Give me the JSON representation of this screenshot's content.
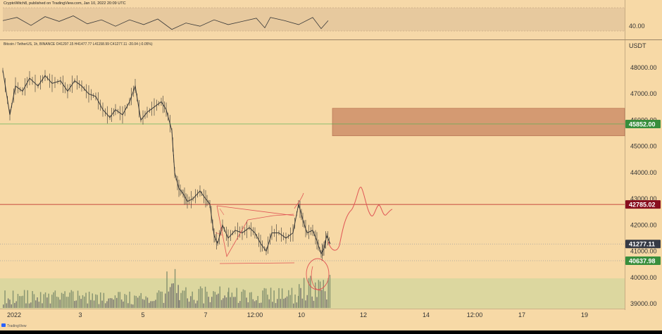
{
  "header": {
    "publisher_line": "CryptoWitch8, published on TradingView.com, Jan 10, 2022 20:09 UTC"
  },
  "chart_info": {
    "ohlc_line": "Bitcoin / TetherUS, 1h, BINANCE  O41297.15  H41477.77  L41158.99  C41277.11  -20.04 (-0.05%)"
  },
  "footer": {
    "brand": "TradingView"
  },
  "chart_data": {
    "type": "line",
    "ylim": [
      38800,
      49300
    ],
    "y_ticks": [
      "48000.00",
      "47000.00",
      "46000.00",
      "45000.00",
      "44000.00",
      "43000.00",
      "42000.00",
      "41000.00",
      "40000.00",
      "39000.00"
    ],
    "x_ticks": [
      "2022",
      "3",
      "5",
      "7",
      "12:00",
      "10",
      "12",
      "14",
      "12:00",
      "17",
      "19"
    ],
    "price_labels": [
      {
        "text": "45852.00",
        "color": "#388e3c"
      },
      {
        "text": "42785.02",
        "color": "#880e1e"
      },
      {
        "text": "41277.11",
        "color": "#363a45"
      },
      {
        "text": "40637.98",
        "color": "#388e3c"
      }
    ],
    "currency_label": "USDT",
    "rsi_label": "40.00",
    "zone": {
      "from": 45400,
      "to": 46450,
      "color": "#d49a72"
    },
    "lines": [
      {
        "value": 45852,
        "color": "#4caf50"
      },
      {
        "value": 42785.02,
        "color": "#b71c1c"
      },
      {
        "value": 41277.11,
        "color": "#9e9e9e"
      },
      {
        "value": 40637.98,
        "color": "#9e9e9e"
      }
    ],
    "price_path": [
      [
        0,
        47900
      ],
      [
        10,
        46200
      ],
      [
        18,
        47300
      ],
      [
        28,
        47100
      ],
      [
        38,
        47600
      ],
      [
        50,
        47300
      ],
      [
        60,
        47700
      ],
      [
        70,
        47400
      ],
      [
        82,
        47500
      ],
      [
        92,
        47100
      ],
      [
        102,
        47500
      ],
      [
        112,
        47300
      ],
      [
        122,
        47000
      ],
      [
        132,
        46900
      ],
      [
        142,
        46400
      ],
      [
        152,
        46100
      ],
      [
        160,
        46400
      ],
      [
        170,
        46200
      ],
      [
        180,
        46700
      ],
      [
        188,
        47300
      ],
      [
        196,
        46000
      ],
      [
        205,
        46300
      ],
      [
        215,
        46500
      ],
      [
        225,
        46700
      ],
      [
        232,
        46400
      ],
      [
        240,
        45600
      ],
      [
        244,
        44000
      ],
      [
        250,
        43400
      ],
      [
        256,
        43200
      ],
      [
        262,
        42900
      ],
      [
        270,
        43000
      ],
      [
        280,
        43300
      ],
      [
        288,
        43000
      ],
      [
        294,
        42800
      ],
      [
        300,
        41600
      ],
      [
        305,
        41300
      ],
      [
        312,
        42000
      ],
      [
        320,
        41500
      ],
      [
        330,
        41800
      ],
      [
        340,
        41700
      ],
      [
        350,
        41900
      ],
      [
        358,
        41700
      ],
      [
        366,
        41300
      ],
      [
        374,
        41000
      ],
      [
        382,
        41700
      ],
      [
        392,
        41700
      ],
      [
        402,
        41500
      ],
      [
        412,
        41700
      ],
      [
        420,
        42800
      ],
      [
        426,
        42200
      ],
      [
        432,
        41700
      ],
      [
        440,
        41800
      ],
      [
        446,
        41400
      ],
      [
        452,
        40900
      ],
      [
        456,
        41100
      ],
      [
        460,
        41600
      ],
      [
        465,
        41277
      ]
    ],
    "volume": [
      {
        "from": 0,
        "to": 230,
        "lo": 1.5,
        "hi": 8
      },
      {
        "from": 230,
        "to": 250,
        "lo": 6,
        "hi": 18
      },
      {
        "from": 250,
        "to": 320,
        "lo": 2,
        "hi": 11
      },
      {
        "from": 320,
        "to": 420,
        "lo": 1.5,
        "hi": 9
      },
      {
        "from": 420,
        "to": 465,
        "lo": 3,
        "hi": 15
      }
    ],
    "rsi_path": [
      [
        0,
        43
      ],
      [
        20,
        47
      ],
      [
        40,
        37
      ],
      [
        60,
        48
      ],
      [
        80,
        42
      ],
      [
        100,
        49
      ],
      [
        120,
        39
      ],
      [
        140,
        44
      ],
      [
        160,
        36
      ],
      [
        180,
        44
      ],
      [
        200,
        38
      ],
      [
        220,
        45
      ],
      [
        240,
        32
      ],
      [
        260,
        40
      ],
      [
        280,
        36
      ],
      [
        300,
        44
      ],
      [
        320,
        38
      ],
      [
        340,
        42
      ],
      [
        360,
        46
      ],
      [
        372,
        34
      ],
      [
        380,
        47
      ],
      [
        400,
        43
      ],
      [
        420,
        38
      ],
      [
        440,
        47
      ],
      [
        452,
        33
      ],
      [
        462,
        43
      ]
    ]
  }
}
